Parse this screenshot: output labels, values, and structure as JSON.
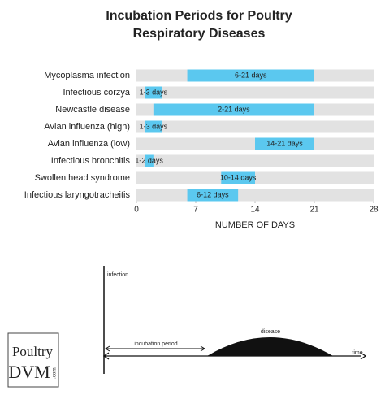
{
  "chart_data": {
    "type": "range-bar",
    "title_lines": [
      "Incubation Periods for Poultry",
      "Respiratory Diseases"
    ],
    "categories": [
      "Mycoplasma infection",
      "Infectious corzya",
      "Newcastle disease",
      "Avian influenza (high)",
      "Avian influenza (low)",
      "Infectious bronchitis",
      "Swollen head syndrome",
      "Infectious laryngotracheitis"
    ],
    "starts": [
      6,
      1,
      2,
      1,
      14,
      1,
      10,
      6
    ],
    "ends": [
      21,
      3,
      21,
      3,
      21,
      2,
      14,
      12
    ],
    "value_labels": [
      "6-21 days",
      "1-3 days",
      "2-21 days",
      "1-3 days",
      "14-21 days",
      "1-2 days",
      "10-14 days",
      "6-12 days"
    ],
    "color": "#5bc8ef",
    "band_color": "#e2e2e2",
    "xlim": [
      0,
      28
    ],
    "xticks": [
      0,
      7,
      14,
      21,
      28
    ],
    "xlabel": "NUMBER OF DAYS"
  },
  "diagram": {
    "y_label": "infection",
    "interval_label": "incubation period",
    "curve_label": "disease",
    "x_label": "time"
  },
  "logo": {
    "line1": "Poultry",
    "line2": "DVM",
    "suffix": ".com"
  }
}
